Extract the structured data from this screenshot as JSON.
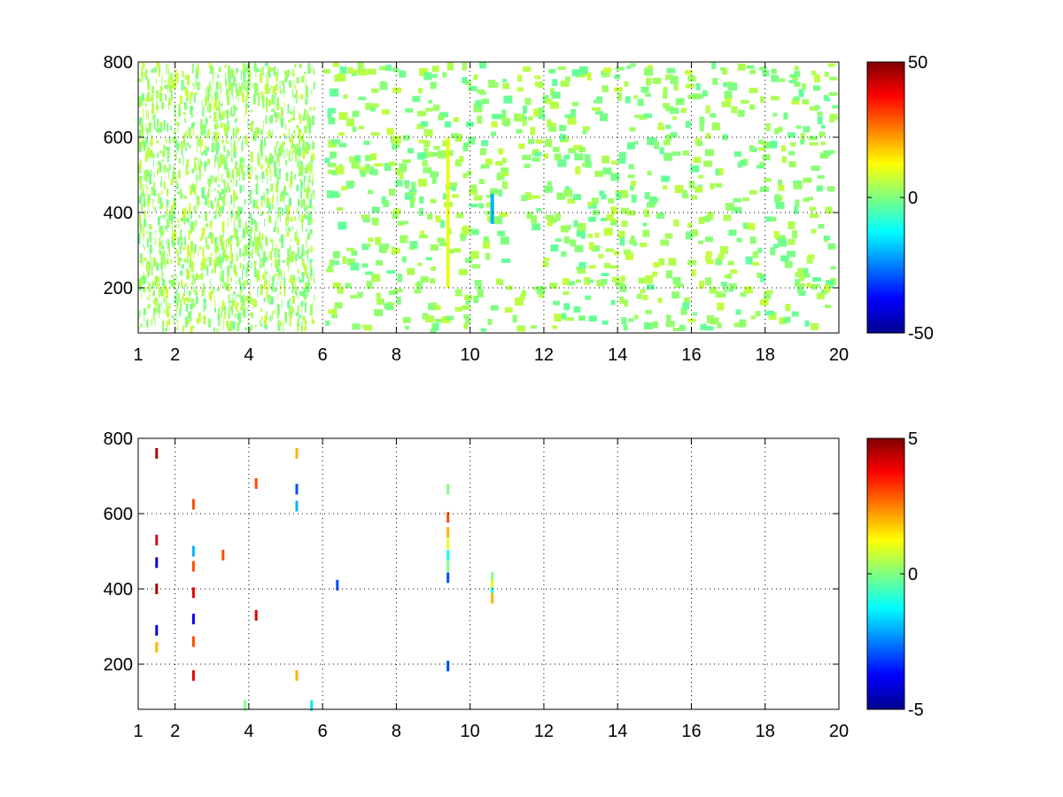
{
  "chart_data": [
    {
      "type": "heatmap",
      "title": "",
      "xlabel": "",
      "ylabel": "",
      "xlim": [
        1,
        20
      ],
      "ylim": [
        80,
        800
      ],
      "xticks": [
        "1",
        "2",
        "4",
        "6",
        "8",
        "10",
        "12",
        "14",
        "16",
        "18",
        "20"
      ],
      "xtick_values": [
        1,
        2,
        4,
        6,
        8,
        10,
        12,
        14,
        16,
        18,
        20
      ],
      "yticks": [
        "200",
        "400",
        "600",
        "800"
      ],
      "ytick_values": [
        200,
        400,
        600,
        800
      ],
      "grid": true,
      "colormap": "jet",
      "clim": [
        -50,
        50
      ],
      "colorbar_ticks": [
        "-50",
        "0",
        "50"
      ],
      "colorbar_tick_values": [
        -50,
        0,
        50
      ],
      "features": [
        {
          "x_range": [
            1,
            5.8
          ],
          "value": 3,
          "density": "dense",
          "note": "mixed fine-scale values between about -10 and 10"
        },
        {
          "x_range": [
            6,
            20
          ],
          "value": 2,
          "density": "sparse",
          "note": "scattered blocks between about -10 and 10"
        },
        {
          "x": 9.4,
          "y_range": [
            200,
            600
          ],
          "value": 10
        },
        {
          "x": 10.6,
          "y_range": [
            370,
            450
          ],
          "value": -20
        }
      ]
    },
    {
      "type": "heatmap",
      "title": "",
      "xlabel": "",
      "ylabel": "",
      "xlim": [
        1,
        20
      ],
      "ylim": [
        80,
        800
      ],
      "xticks": [
        "1",
        "2",
        "4",
        "6",
        "8",
        "10",
        "12",
        "14",
        "16",
        "18",
        "20"
      ],
      "xtick_values": [
        1,
        2,
        4,
        6,
        8,
        10,
        12,
        14,
        16,
        18,
        20
      ],
      "yticks": [
        "200",
        "400",
        "600",
        "800"
      ],
      "ytick_values": [
        200,
        400,
        600,
        800
      ],
      "grid": true,
      "colormap": "jet",
      "clim": [
        -5,
        5
      ],
      "colorbar_ticks": [
        "-5",
        "0",
        "5"
      ],
      "colorbar_tick_values": [
        -5,
        0,
        5
      ],
      "points": [
        {
          "x": 1.5,
          "y": 760,
          "value": 4.5
        },
        {
          "x": 1.5,
          "y": 530,
          "value": 4
        },
        {
          "x": 1.5,
          "y": 470,
          "value": -4
        },
        {
          "x": 1.5,
          "y": 400,
          "value": 4.5
        },
        {
          "x": 1.5,
          "y": 290,
          "value": -4
        },
        {
          "x": 1.5,
          "y": 245,
          "value": 2
        },
        {
          "x": 2.5,
          "y": 625,
          "value": 3
        },
        {
          "x": 2.5,
          "y": 500,
          "value": -2
        },
        {
          "x": 2.5,
          "y": 460,
          "value": 3
        },
        {
          "x": 2.5,
          "y": 390,
          "value": 4
        },
        {
          "x": 2.5,
          "y": 320,
          "value": -4
        },
        {
          "x": 2.5,
          "y": 260,
          "value": 3
        },
        {
          "x": 2.5,
          "y": 170,
          "value": 4
        },
        {
          "x": 3.3,
          "y": 490,
          "value": 3
        },
        {
          "x": 4.2,
          "y": 680,
          "value": 3
        },
        {
          "x": 4.2,
          "y": 330,
          "value": 4
        },
        {
          "x": 3.9,
          "y": 90,
          "value": 0
        },
        {
          "x": 5.3,
          "y": 760,
          "value": 2
        },
        {
          "x": 5.3,
          "y": 665,
          "value": -3
        },
        {
          "x": 5.3,
          "y": 620,
          "value": -2
        },
        {
          "x": 5.3,
          "y": 170,
          "value": 2
        },
        {
          "x": 5.7,
          "y": 90,
          "value": -1.5
        },
        {
          "x": 6.4,
          "y": 410,
          "value": -3
        },
        {
          "x": 9.4,
          "y": 665,
          "value": 0
        },
        {
          "x": 9.4,
          "y": 590,
          "value": 3
        },
        {
          "x": 9.4,
          "y": 550,
          "value": 2
        },
        {
          "x": 9.4,
          "y": 520,
          "value": 1
        },
        {
          "x": 9.4,
          "y": 490,
          "value": -1
        },
        {
          "x": 9.4,
          "y": 460,
          "value": 0
        },
        {
          "x": 9.4,
          "y": 430,
          "value": -3
        },
        {
          "x": 9.4,
          "y": 195,
          "value": -3
        },
        {
          "x": 10.6,
          "y": 430,
          "value": 0
        },
        {
          "x": 10.6,
          "y": 410,
          "value": 1
        },
        {
          "x": 10.6,
          "y": 390,
          "value": -1
        },
        {
          "x": 10.6,
          "y": 375,
          "value": 2
        }
      ]
    }
  ]
}
